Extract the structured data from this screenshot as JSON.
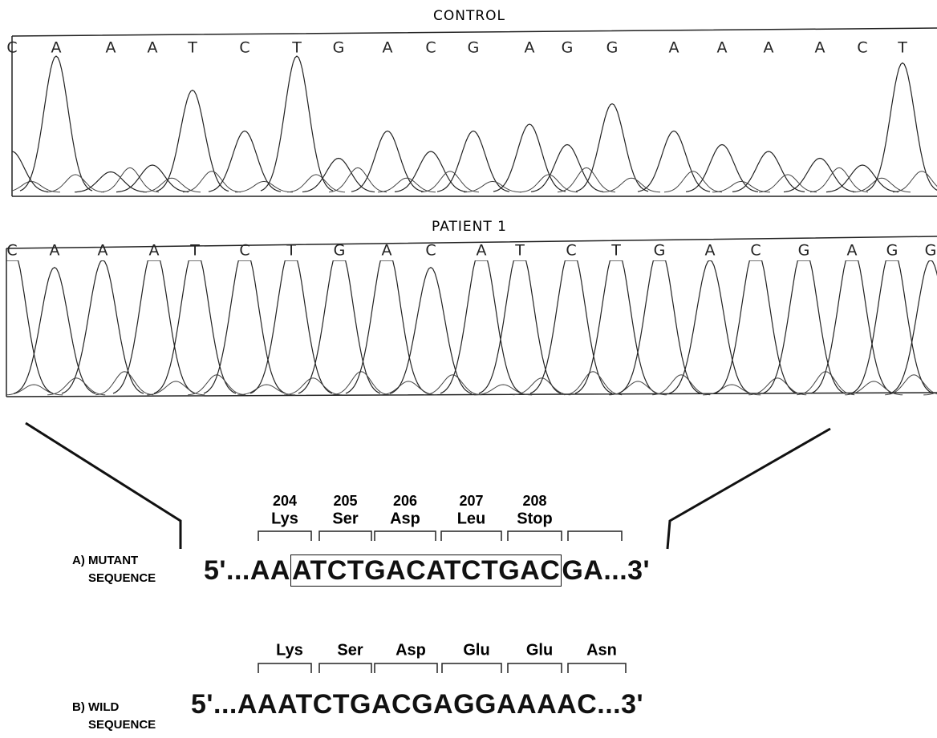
{
  "panels": [
    {
      "title": "CONTROL",
      "bases": [
        "C",
        "A",
        "A",
        "A",
        "T",
        "C",
        "T",
        "G",
        "A",
        "C",
        "G",
        "A",
        "G",
        "G",
        "A",
        "A",
        "A",
        "A",
        "C",
        "T"
      ]
    },
    {
      "title": "PATIENT 1",
      "bases": [
        "C",
        "A",
        "A",
        "A",
        "T",
        "C",
        "T",
        "G",
        "A",
        "C",
        "A",
        "T",
        "C",
        "T",
        "G",
        "A",
        "C",
        "G",
        "A",
        "G",
        "G"
      ]
    }
  ],
  "mutant": {
    "label": [
      "A) MUTANT",
      "SEQUENCE"
    ],
    "codons": [
      {
        "number": 204,
        "amino_acid": "Lys"
      },
      {
        "number": 205,
        "amino_acid": "Ser"
      },
      {
        "number": 206,
        "amino_acid": "Asp"
      },
      {
        "number": 207,
        "amino_acid": "Leu"
      },
      {
        "number": 208,
        "amino_acid": "Stop"
      }
    ],
    "sequence": {
      "prefix": "5'...AA",
      "boxed": "ATCTGACATCTGAC",
      "suffix": "GA...3'"
    }
  },
  "wild": {
    "label": [
      "B) WILD",
      "SEQUENCE"
    ],
    "codons": [
      {
        "amino_acid": "Lys"
      },
      {
        "amino_acid": "Ser"
      },
      {
        "amino_acid": "Asp"
      },
      {
        "amino_acid": "Glu"
      },
      {
        "amino_acid": "Glu"
      },
      {
        "amino_acid": "Asn"
      }
    ],
    "sequence": "5'...AAATCTGACGAGGAAAAC...3'"
  }
}
